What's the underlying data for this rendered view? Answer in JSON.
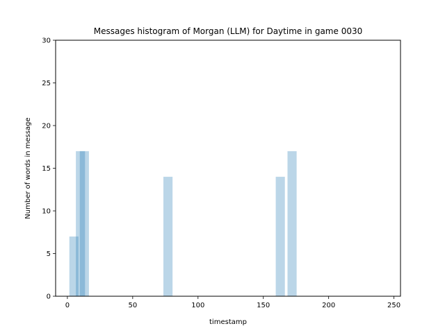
{
  "chart_data": {
    "type": "bar",
    "title": "Messages histogram of Morgan (LLM) for Daytime in game 0030",
    "xlabel": "timestamp",
    "ylabel": "Number of words in message",
    "xlim": [
      -9,
      255
    ],
    "ylim": [
      0,
      30
    ],
    "xticks": [
      0,
      50,
      100,
      150,
      200,
      250
    ],
    "yticks": [
      0,
      5,
      10,
      15,
      20,
      25,
      30
    ],
    "grid": false,
    "bar_width": 7,
    "bar_color": "#1f77b4",
    "bar_opacity": 0.3,
    "bars": [
      {
        "x": 5,
        "value": 7
      },
      {
        "x": 10,
        "value": 17
      },
      {
        "x": 13,
        "value": 17
      },
      {
        "x": 77,
        "value": 14
      },
      {
        "x": 163,
        "value": 14
      },
      {
        "x": 172,
        "value": 17
      }
    ]
  }
}
